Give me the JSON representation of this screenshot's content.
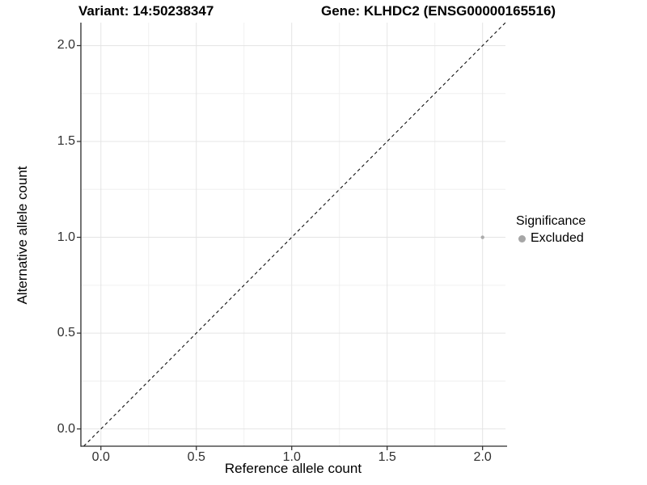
{
  "titles": {
    "left": "Variant: 14:50238347",
    "right": "Gene: KLHDC2 (ENSG00000165516)"
  },
  "chart_data": {
    "type": "scatter",
    "title_left": "Variant: 14:50238347",
    "title_right": "Gene: KLHDC2 (ENSG00000165516)",
    "xlabel": "Reference allele count",
    "ylabel": "Alternative allele count",
    "xlim": [
      -0.105,
      2.12
    ],
    "ylim": [
      -0.09,
      2.12
    ],
    "x_ticks": [
      0.0,
      0.5,
      1.0,
      1.5,
      2.0
    ],
    "y_ticks": [
      0.0,
      0.5,
      1.0,
      1.5,
      2.0
    ],
    "x_tick_labels": [
      "0.0",
      "0.5",
      "1.0",
      "1.5",
      "2.0"
    ],
    "y_tick_labels": [
      "0.0",
      "0.5",
      "1.0",
      "1.5",
      "2.0"
    ],
    "minor_ticks": [
      0.25,
      0.75,
      1.25,
      1.75
    ],
    "grid": true,
    "identity_line": {
      "style": "dashed",
      "slope": 1,
      "intercept": 0
    },
    "series": [
      {
        "name": "Excluded",
        "color": "#ababab",
        "point_radius": 2.2,
        "points": [
          {
            "x": 2.0,
            "y": 1.0
          }
        ]
      }
    ],
    "legend": {
      "title": "Significance",
      "position": "right",
      "entries": [
        {
          "label": "Excluded",
          "color": "#a6a6a6"
        }
      ]
    }
  },
  "colors": {
    "background": "#ffffff",
    "grid_major": "#e4e4e4",
    "grid_minor": "#f0f0f0",
    "axis": "#2a2a2a",
    "tick_text": "#303030",
    "dashed_line": "#111111"
  }
}
